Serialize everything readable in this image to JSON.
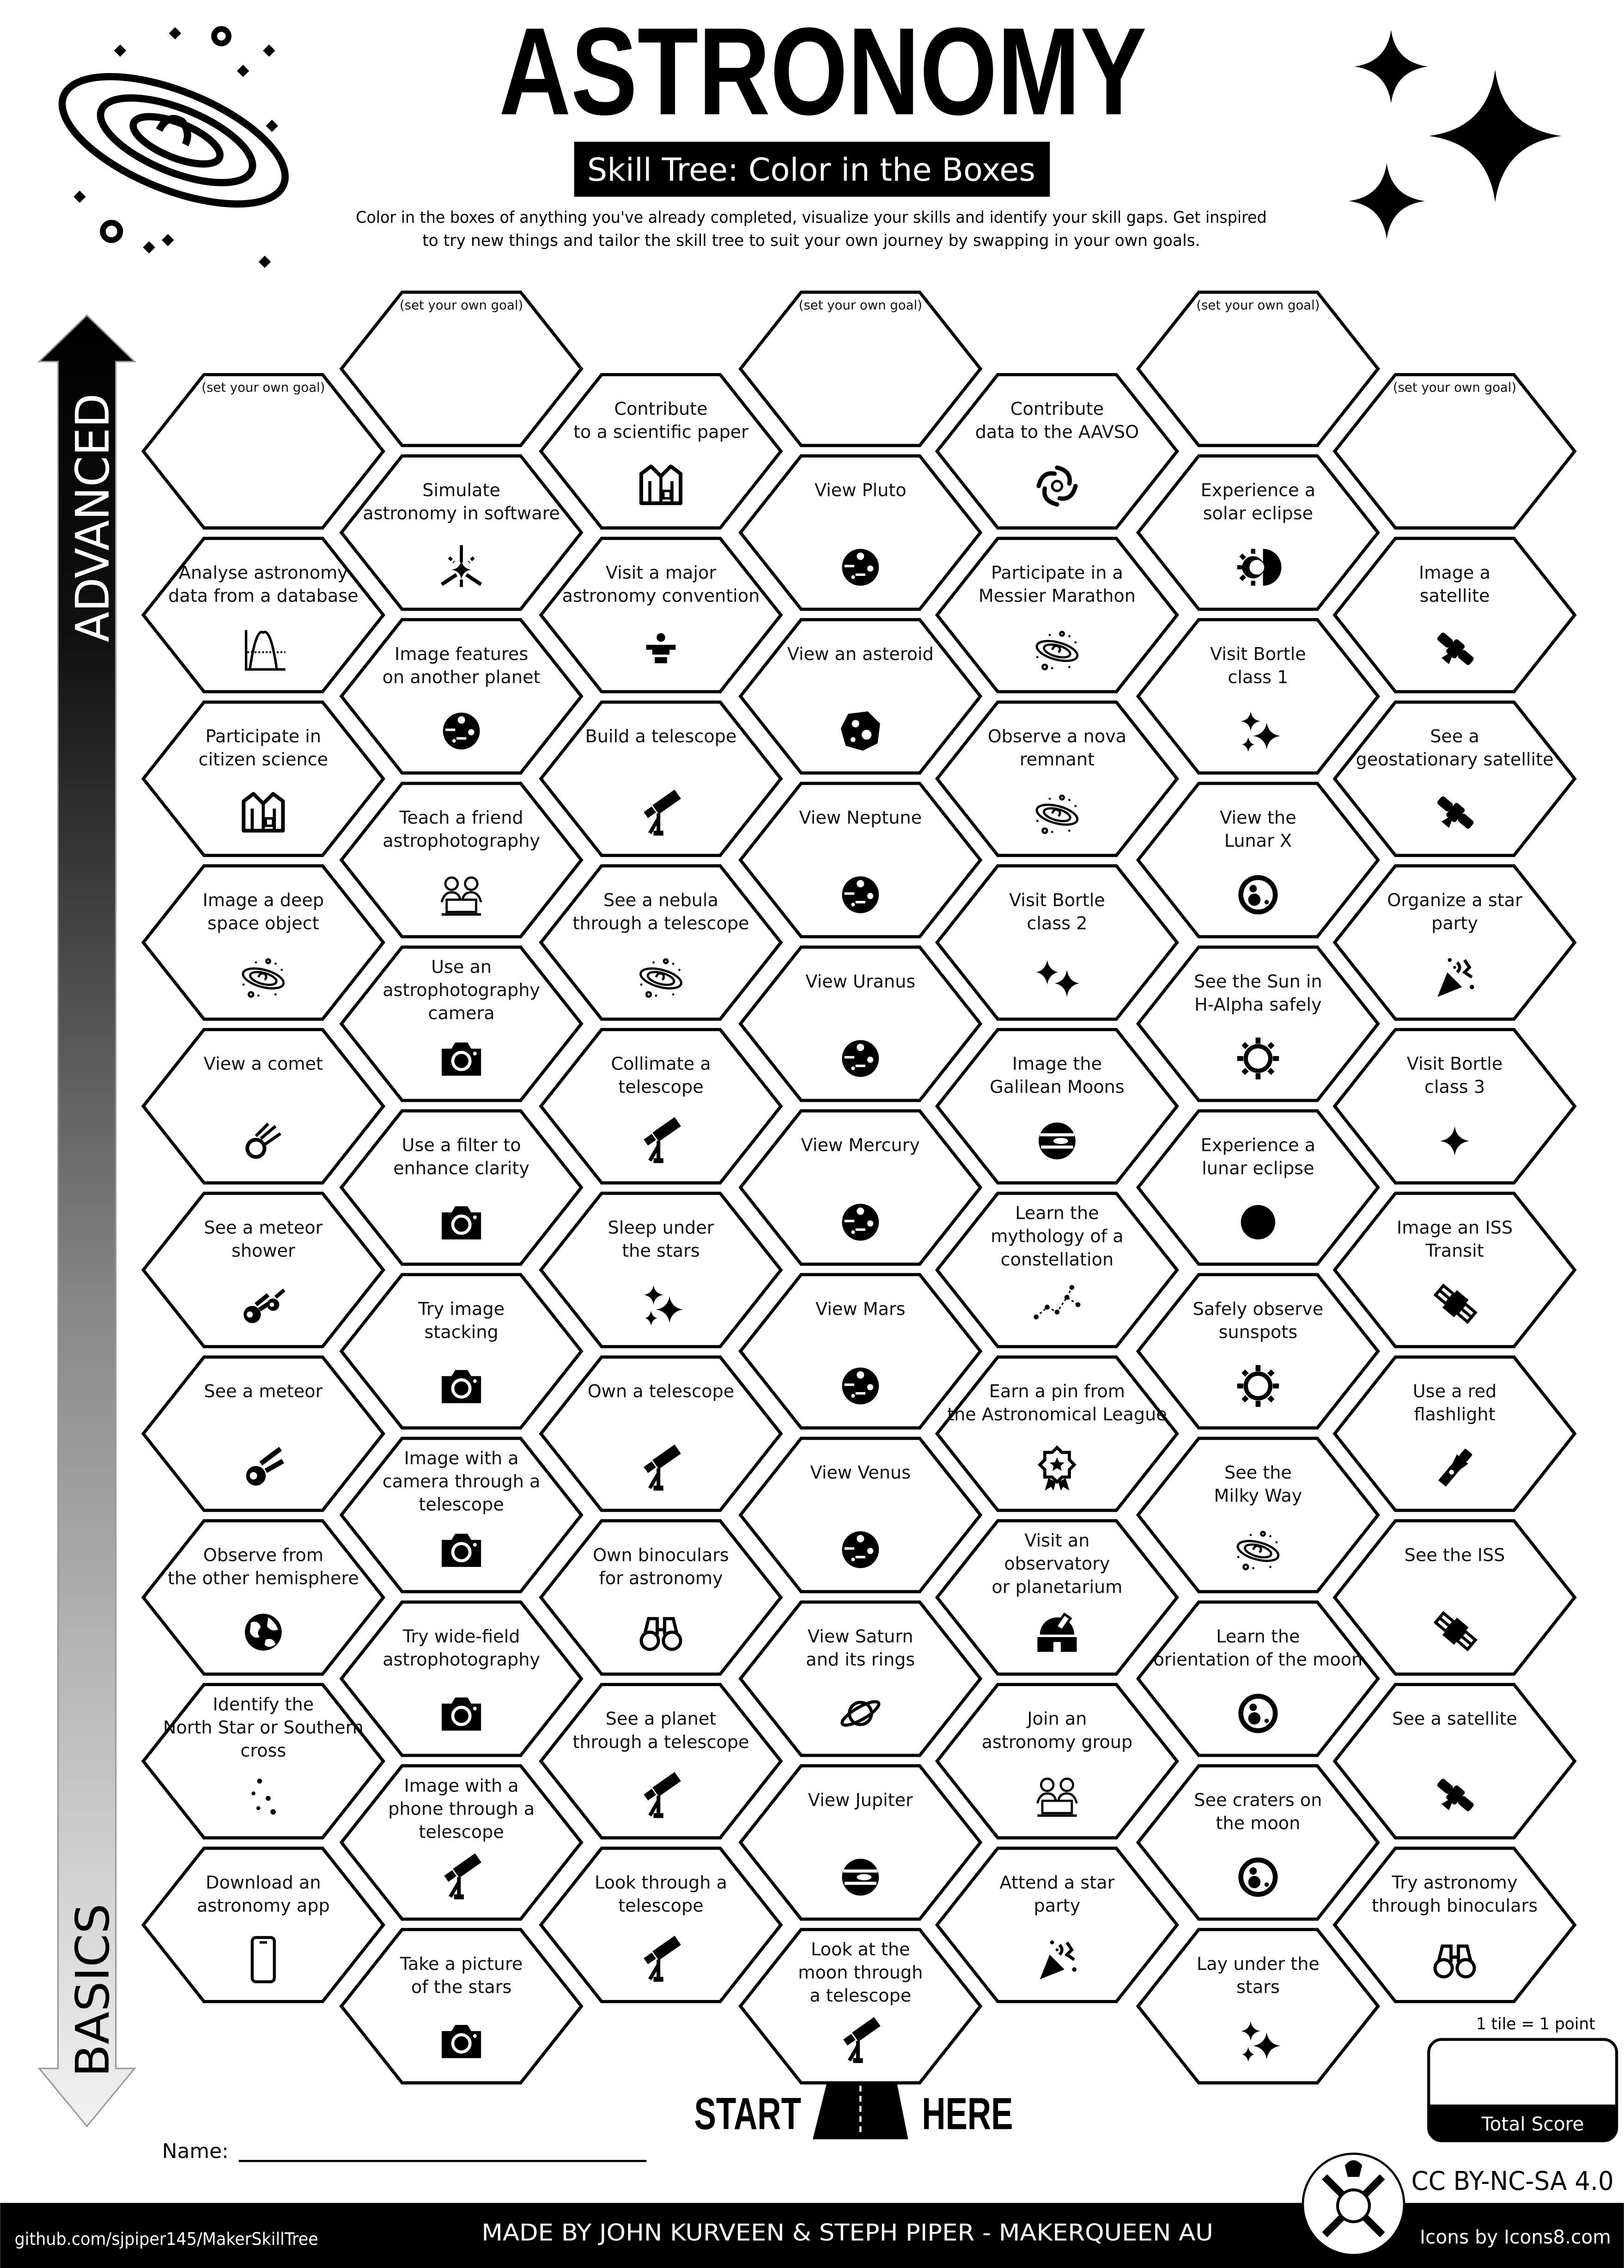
{
  "header": {
    "title": "ASTRONOMY",
    "subtitle": "Skill Tree: Color in the Boxes",
    "description": [
      "Color in the boxes of anything you've already completed, visualize your skills and identify your skill gaps.  Get inspired",
      "to try new things and tailor the skill tree to suit your own journey by swapping in your own goals."
    ]
  },
  "axis": {
    "top_label": "ADVANCED",
    "bottom_label": "BASICS"
  },
  "colors": {
    "ink": "#000000",
    "paper": "#ffffff",
    "gradient_end": "#e6e6e6"
  },
  "goal_text": "(set your own goal)",
  "columns": [
    [
      {
        "goal": true
      },
      {
        "lines": [
          "Analyse astronomy",
          "data from a database"
        ],
        "icon": "chart"
      },
      {
        "lines": [
          "Participate in",
          "citizen science"
        ],
        "icon": "labcoat"
      },
      {
        "lines": [
          "Image a deep",
          "space object"
        ],
        "icon": "galaxy"
      },
      {
        "lines": [
          "View a comet"
        ],
        "icon": "comet"
      },
      {
        "lines": [
          "See a meteor",
          "shower"
        ],
        "icon": "meteor-shower"
      },
      {
        "lines": [
          "See a meteor"
        ],
        "icon": "meteor"
      },
      {
        "lines": [
          "Observe from",
          "the other hemisphere"
        ],
        "icon": "earth"
      },
      {
        "lines": [
          "Identify the",
          "North Star or Southern",
          "cross"
        ],
        "icon": "star-dots"
      },
      {
        "lines": [
          "Download an",
          "astronomy app"
        ],
        "icon": "phone"
      }
    ],
    [
      {
        "goal": true
      },
      {
        "lines": [
          "Simulate",
          "astronomy in software"
        ],
        "icon": "simulate"
      },
      {
        "lines": [
          "Image features",
          "on another planet"
        ],
        "icon": "planet"
      },
      {
        "lines": [
          "Teach a friend",
          "astrophotography"
        ],
        "icon": "people"
      },
      {
        "lines": [
          "Use an",
          "astrophotography",
          "camera"
        ],
        "icon": "camera"
      },
      {
        "lines": [
          "Use a filter to",
          "enhance clarity"
        ],
        "icon": "camera"
      },
      {
        "lines": [
          "Try image",
          "stacking"
        ],
        "icon": "camera"
      },
      {
        "lines": [
          "Image with a",
          "camera through a",
          "telescope"
        ],
        "icon": "camera"
      },
      {
        "lines": [
          "Try wide-field",
          "astrophotography"
        ],
        "icon": "camera"
      },
      {
        "lines": [
          "Image with a",
          "phone through a",
          "telescope"
        ],
        "icon": "telescope"
      },
      {
        "lines": [
          "Take a picture",
          "of the stars"
        ],
        "icon": "camera"
      }
    ],
    [
      {
        "lines": [
          "Contribute",
          "to a scientific paper"
        ],
        "icon": "labcoat"
      },
      {
        "lines": [
          "Visit a major",
          "astronomy convention"
        ],
        "icon": "podium"
      },
      {
        "lines": [
          "Build a telescope"
        ],
        "icon": "telescope"
      },
      {
        "lines": [
          "See a nebula",
          "through a telescope"
        ],
        "icon": "galaxy"
      },
      {
        "lines": [
          "Collimate a",
          "telescope"
        ],
        "icon": "telescope"
      },
      {
        "lines": [
          "Sleep under",
          "the stars"
        ],
        "icon": "sparkles"
      },
      {
        "lines": [
          "Own a telescope"
        ],
        "icon": "telescope"
      },
      {
        "lines": [
          "Own binoculars",
          "for astronomy"
        ],
        "icon": "binoculars"
      },
      {
        "lines": [
          "See a planet",
          "through a telescope"
        ],
        "icon": "telescope"
      },
      {
        "lines": [
          "Look through a",
          "telescope"
        ],
        "icon": "telescope"
      }
    ],
    [
      {
        "goal": true
      },
      {
        "lines": [
          "View Pluto"
        ],
        "icon": "planet"
      },
      {
        "lines": [
          "View an asteroid"
        ],
        "icon": "asteroid"
      },
      {
        "lines": [
          "View Neptune"
        ],
        "icon": "planet"
      },
      {
        "lines": [
          "View Uranus"
        ],
        "icon": "planet"
      },
      {
        "lines": [
          "View Mercury"
        ],
        "icon": "planet"
      },
      {
        "lines": [
          "View Mars"
        ],
        "icon": "planet"
      },
      {
        "lines": [
          "View Venus"
        ],
        "icon": "planet"
      },
      {
        "lines": [
          "View Saturn",
          "and its rings"
        ],
        "icon": "saturn"
      },
      {
        "lines": [
          "View Jupiter"
        ],
        "icon": "jupiter"
      },
      {
        "lines": [
          "Look at the",
          "moon through",
          "a telescope"
        ],
        "icon": "telescope"
      }
    ],
    [
      {
        "lines": [
          "Contribute",
          "data to the AAVSO"
        ],
        "icon": "aavso"
      },
      {
        "lines": [
          "Participate in a",
          "Messier Marathon"
        ],
        "icon": "galaxy"
      },
      {
        "lines": [
          "Observe a nova",
          "remnant"
        ],
        "icon": "galaxy"
      },
      {
        "lines": [
          "Visit Bortle",
          "class 2"
        ],
        "icon": "sparkles2"
      },
      {
        "lines": [
          "Image the",
          "Galilean Moons"
        ],
        "icon": "jupiter"
      },
      {
        "lines": [
          "Learn the",
          "mythology of a",
          "constellation"
        ],
        "icon": "constellation"
      },
      {
        "lines": [
          "Earn a pin from",
          "the Astronomical League"
        ],
        "icon": "award"
      },
      {
        "lines": [
          "Visit an",
          "observatory",
          "or planetarium"
        ],
        "icon": "observatory"
      },
      {
        "lines": [
          "Join an",
          "astronomy group"
        ],
        "icon": "people"
      },
      {
        "lines": [
          "Attend a star",
          "party"
        ],
        "icon": "party"
      }
    ],
    [
      {
        "goal": true
      },
      {
        "lines": [
          "Experience a",
          "solar eclipse"
        ],
        "icon": "solar-eclipse"
      },
      {
        "lines": [
          "Visit Bortle",
          "class 1"
        ],
        "icon": "sparkles"
      },
      {
        "lines": [
          "View the",
          "Lunar X"
        ],
        "icon": "moon"
      },
      {
        "lines": [
          "See the Sun in",
          "H-Alpha safely"
        ],
        "icon": "sun"
      },
      {
        "lines": [
          "Experience a",
          "lunar eclipse"
        ],
        "icon": "lunar-eclipse"
      },
      {
        "lines": [
          "Safely observe",
          "sunspots"
        ],
        "icon": "sun"
      },
      {
        "lines": [
          "See the",
          "Milky Way"
        ],
        "icon": "galaxy"
      },
      {
        "lines": [
          "Learn the",
          "orientation of the moon"
        ],
        "icon": "moon"
      },
      {
        "lines": [
          "See craters on",
          "the moon"
        ],
        "icon": "moon"
      },
      {
        "lines": [
          "Lay under the",
          "stars"
        ],
        "icon": "sparkles"
      }
    ],
    [
      {
        "goal": true
      },
      {
        "lines": [
          "Image a",
          "satellite"
        ],
        "icon": "satellite"
      },
      {
        "lines": [
          "See a",
          "geostationary satellite"
        ],
        "icon": "satellite"
      },
      {
        "lines": [
          "Organize a star",
          "party"
        ],
        "icon": "party"
      },
      {
        "lines": [
          "Visit Bortle",
          "class 3"
        ],
        "icon": "star"
      },
      {
        "lines": [
          "Image an ISS",
          "Transit"
        ],
        "icon": "iss"
      },
      {
        "lines": [
          "Use a red",
          "flashlight"
        ],
        "icon": "flashlight"
      },
      {
        "lines": [
          "See the ISS"
        ],
        "icon": "iss"
      },
      {
        "lines": [
          "See a satellite"
        ],
        "icon": "satellite"
      },
      {
        "lines": [
          "Try astronomy",
          "through binoculars"
        ],
        "icon": "binoculars"
      }
    ]
  ],
  "start": {
    "left": "START",
    "right": "HERE"
  },
  "score": {
    "note": "1 tile = 1 point",
    "label": "Total Score"
  },
  "name_label": "Name:",
  "license": "CC BY-NC-SA 4.0",
  "footer": {
    "repo": "github.com/sjpiper145/MakerSkillTree",
    "credits": "MADE BY JOHN KURVEEN & STEPH PIPER  -  MAKERQUEEN AU",
    "icons_credit": "Icons by Icons8.com"
  }
}
